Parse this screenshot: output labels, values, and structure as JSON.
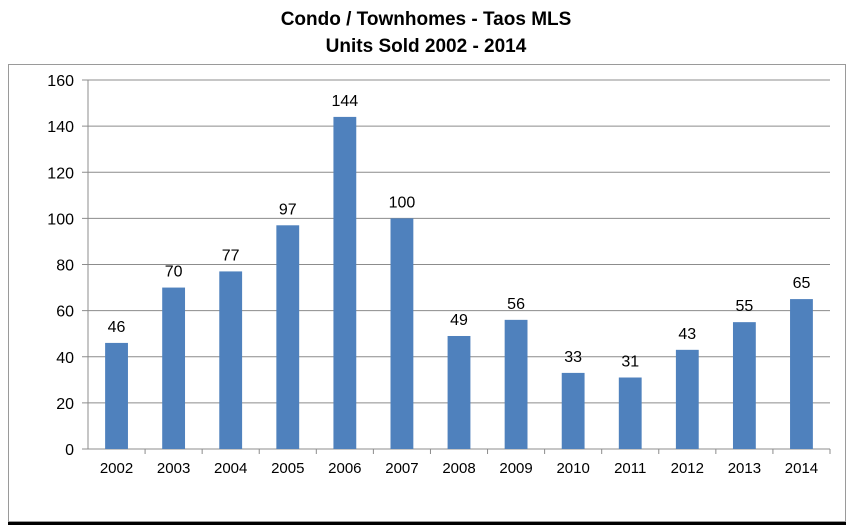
{
  "chart_data": {
    "type": "bar",
    "title": "Condo / Townhomes - Taos MLS",
    "subtitle": "Units Sold 2002 - 2014",
    "xlabel": "",
    "ylabel": "",
    "categories": [
      "2002",
      "2003",
      "2004",
      "2005",
      "2006",
      "2007",
      "2008",
      "2009",
      "2010",
      "2011",
      "2012",
      "2013",
      "2014"
    ],
    "values": [
      46,
      70,
      77,
      97,
      144,
      100,
      49,
      56,
      33,
      31,
      43,
      55,
      65
    ],
    "ylim": [
      0,
      160
    ],
    "yticks": [
      0,
      20,
      40,
      60,
      80,
      100,
      120,
      140,
      160
    ],
    "grid": true,
    "legend": "none",
    "bar_color": "#4f81bd",
    "grid_color": "#8c8c8c"
  }
}
